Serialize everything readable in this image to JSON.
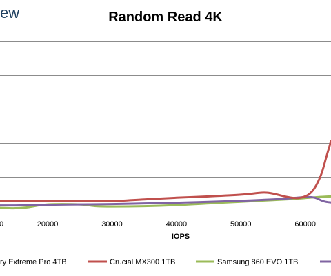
{
  "page": {
    "logo_fragment": "ew"
  },
  "chart_data": {
    "type": "line",
    "title": "Random Read 4K",
    "xlabel": "IOPS",
    "ylabel": "",
    "xlim": [
      12600,
      64000
    ],
    "ylim": [
      0,
      5.1
    ],
    "x_ticks": [
      20000,
      30000,
      40000,
      50000,
      60000
    ],
    "partial_x_tick_label": "0",
    "y_gridlines": [
      0,
      1,
      2,
      3,
      4,
      5
    ],
    "grid": true,
    "legend_position": "bottom",
    "series": [
      {
        "name": "ry Extreme Pro 4TB",
        "color": "#4e7bbf",
        "points": []
      },
      {
        "name": "Crucial MX300 1TB",
        "color": "#c0504d",
        "points": [
          [
            12600,
            0.28
          ],
          [
            15000,
            0.29
          ],
          [
            20000,
            0.29
          ],
          [
            25000,
            0.28
          ],
          [
            30000,
            0.28
          ],
          [
            35000,
            0.33
          ],
          [
            40000,
            0.38
          ],
          [
            45000,
            0.42
          ],
          [
            50000,
            0.47
          ],
          [
            53500,
            0.53
          ],
          [
            55000,
            0.5
          ],
          [
            57000,
            0.41
          ],
          [
            58500,
            0.37
          ],
          [
            59500,
            0.39
          ],
          [
            60500,
            0.47
          ],
          [
            61500,
            0.68
          ],
          [
            62500,
            1.08
          ],
          [
            63300,
            1.6
          ],
          [
            64000,
            2.05
          ]
        ]
      },
      {
        "name": "Samsung 860 EVO 1TB",
        "color": "#9bbb59",
        "points": [
          [
            12600,
            0.08
          ],
          [
            15000,
            0.07
          ],
          [
            17000,
            0.1
          ],
          [
            20000,
            0.18
          ],
          [
            25000,
            0.18
          ],
          [
            27500,
            0.13
          ],
          [
            30000,
            0.12
          ],
          [
            35000,
            0.13
          ],
          [
            40000,
            0.16
          ],
          [
            45000,
            0.21
          ],
          [
            50000,
            0.26
          ],
          [
            55000,
            0.31
          ],
          [
            58000,
            0.34
          ],
          [
            60000,
            0.37
          ],
          [
            62000,
            0.4
          ],
          [
            64000,
            0.42
          ]
        ]
      },
      {
        "name": "",
        "color": "#8064a2",
        "points": [
          [
            12600,
            0.15
          ],
          [
            15000,
            0.15
          ],
          [
            20000,
            0.17
          ],
          [
            25000,
            0.18
          ],
          [
            30000,
            0.19
          ],
          [
            35000,
            0.21
          ],
          [
            40000,
            0.23
          ],
          [
            45000,
            0.26
          ],
          [
            50000,
            0.29
          ],
          [
            55000,
            0.33
          ],
          [
            58000,
            0.37
          ],
          [
            60000,
            0.4
          ],
          [
            61500,
            0.38
          ],
          [
            62500,
            0.3
          ],
          [
            63200,
            0.26
          ],
          [
            64000,
            0.24
          ]
        ]
      }
    ]
  }
}
